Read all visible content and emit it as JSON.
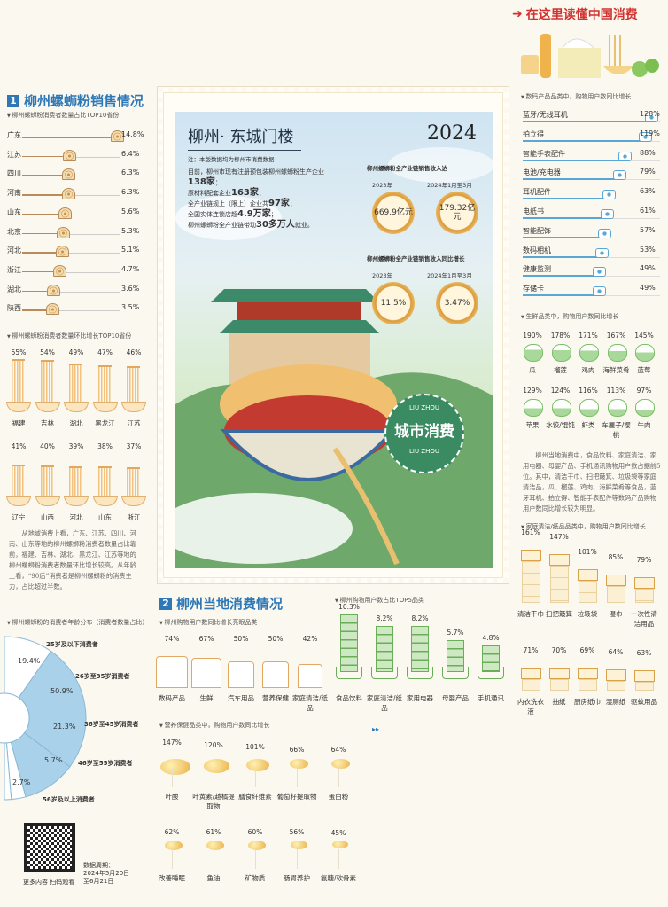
{
  "header": {
    "slogan": "在这里读懂中国消费",
    "slogan_color": "#d2312f"
  },
  "section1": {
    "num": "1",
    "title": "柳州螺蛳粉销售情况",
    "provinces_title": "柳州螺蛳粉消费者数量占比TOP10省份",
    "provinces": [
      {
        "name": "广东",
        "value": 14.8,
        "label": "14.8%"
      },
      {
        "name": "江苏",
        "value": 6.4,
        "label": "6.4%"
      },
      {
        "name": "四川",
        "value": 6.3,
        "label": "6.3%"
      },
      {
        "name": "河南",
        "value": 6.3,
        "label": "6.3%"
      },
      {
        "name": "山东",
        "value": 5.6,
        "label": "5.6%"
      },
      {
        "name": "北京",
        "value": 5.3,
        "label": "5.3%"
      },
      {
        "name": "河北",
        "value": 5.1,
        "label": "5.1%"
      },
      {
        "name": "浙江",
        "value": 4.7,
        "label": "4.7%"
      },
      {
        "name": "湖北",
        "value": 3.6,
        "label": "3.6%"
      },
      {
        "name": "陕西",
        "value": 3.5,
        "label": "3.5%"
      }
    ],
    "growth_title": "柳州螺蛳粉消费者数量环比增长TOP10省份",
    "growth": [
      {
        "name": "福建",
        "value": 55,
        "label": "55%"
      },
      {
        "name": "吉林",
        "value": 54,
        "label": "54%"
      },
      {
        "name": "湖北",
        "value": 49,
        "label": "49%"
      },
      {
        "name": "黑龙江",
        "value": 47,
        "label": "47%"
      },
      {
        "name": "江苏",
        "value": 46,
        "label": "46%"
      },
      {
        "name": "辽宁",
        "value": 41,
        "label": "41%"
      },
      {
        "name": "山西",
        "value": 40,
        "label": "40%"
      },
      {
        "name": "河北",
        "value": 39,
        "label": "39%"
      },
      {
        "name": "山东",
        "value": 38,
        "label": "38%"
      },
      {
        "name": "浙江",
        "value": 37,
        "label": "37%"
      }
    ],
    "paragraph": "从地域消费上看，广东、江苏、四川、河南、山东等地的柳州螺蛳粉消费者数量占比靠前，福建、吉林、湖北、黑龙江、江苏等地的柳州螺蛳粉消费者数量环比增长较高。从年龄上看，“90后”消费者是柳州螺蛳粉的消费主力，占比超过半数。",
    "age_title": "柳州螺蛳粉的消费者年龄分布（消费者数量占比）",
    "ages": [
      {
        "name": "25岁及以下消费者",
        "value": 19.4,
        "label": "19.4%"
      },
      {
        "name": "26岁至35岁消费者",
        "value": 50.9,
        "label": "50.9%"
      },
      {
        "name": "36岁至45岁消费者",
        "value": 21.3,
        "label": "21.3%"
      },
      {
        "name": "46岁至55岁消费者",
        "value": 5.7,
        "label": "5.7%"
      },
      {
        "name": "56岁及以上消费者",
        "value": 2.7,
        "label": "2.7%"
      }
    ],
    "qr_caption": "更多内容 扫码观看",
    "period_label": "数据周期：",
    "period_value": "2024年5月20日至6月21日"
  },
  "stamp": {
    "title": "柳州· 东城门楼",
    "year": "2024",
    "note": "注：本版数据均为柳州市消费数据",
    "facts": [
      {
        "pre": "目前，柳州市现有注册预包装柳州螺蛳粉生产企业",
        "num": "138家",
        "post": "；"
      },
      {
        "pre": "原材料配套企业",
        "num": "163家",
        "post": "；"
      },
      {
        "pre": "全产业链规上（限上）企业共",
        "num": "97家",
        "post": "；"
      },
      {
        "pre": "全国实体连锁店超",
        "num": "4.9万家",
        "post": "；"
      },
      {
        "pre": "柳州螺蛳粉全产业链带动",
        "num": "30多万人",
        "post": "就业。"
      }
    ],
    "revenue_title": "柳州螺蛳粉全产业链销售收入达",
    "growth_title": "柳州螺蛳粉全产业链销售收入同比增长",
    "periods": [
      "2023年",
      "2024年1月至3月"
    ],
    "revenue": [
      "669.9亿元",
      "179.32亿元"
    ],
    "growth": [
      "11.5%",
      "3.47%"
    ],
    "badge_top": "LIU ZHOU",
    "badge_text": "城市消费",
    "badge_bottom": "LIU ZHOU"
  },
  "section2": {
    "num": "2",
    "title": "柳州当地消费情况",
    "hot_title": "柳州购物用户数同比增长亮眼品类",
    "hot": [
      {
        "name": "数码产品",
        "value": 74,
        "label": "74%"
      },
      {
        "name": "生鲜",
        "value": 67,
        "label": "67%"
      },
      {
        "name": "汽车用品",
        "value": 50,
        "label": "50%"
      },
      {
        "name": "营养保健",
        "value": 50,
        "label": "50%"
      },
      {
        "name": "家庭清洁/纸品",
        "value": 42,
        "label": "42%"
      }
    ],
    "top5_title": "柳州购物用户数占比TOP5品类",
    "top5": [
      {
        "name": "食品饮料",
        "value": 10.3,
        "label": "10.3%"
      },
      {
        "name": "家庭清洁/纸品",
        "value": 8.2,
        "label": "8.2%"
      },
      {
        "name": "家用电器",
        "value": 8.2,
        "label": "8.2%"
      },
      {
        "name": "母婴产品",
        "value": 5.7,
        "label": "5.7%"
      },
      {
        "name": "手机通讯",
        "value": 4.8,
        "label": "4.8%"
      }
    ],
    "nutrition_title": "营养保健品类中，购物用户数同比增长",
    "nutrition": [
      {
        "name": "叶酸",
        "value": 147,
        "label": "147%"
      },
      {
        "name": "叶黄素/越橘提取物",
        "value": 120,
        "label": "120%"
      },
      {
        "name": "膳食纤维素",
        "value": 101,
        "label": "101%"
      },
      {
        "name": "葡萄籽提取物",
        "value": 66,
        "label": "66%"
      },
      {
        "name": "蛋白粉",
        "value": 64,
        "label": "64%"
      },
      {
        "name": "改善睡眠",
        "value": 62,
        "label": "62%"
      },
      {
        "name": "鱼油",
        "value": 61,
        "label": "61%"
      },
      {
        "name": "矿物质",
        "value": 60,
        "label": "60%"
      },
      {
        "name": "肠胃养护",
        "value": 56,
        "label": "56%"
      },
      {
        "name": "氨糖/软骨素",
        "value": 45,
        "label": "45%"
      }
    ],
    "arrows": "▸▸"
  },
  "right": {
    "digital_title": "数码产品品类中，购物用户数同比增长",
    "digital": [
      {
        "name": "蓝牙/无线耳机",
        "value": 128,
        "label": "128%"
      },
      {
        "name": "拍立得",
        "value": 119,
        "label": "119%"
      },
      {
        "name": "智能手表配件",
        "value": 88,
        "label": "88%"
      },
      {
        "name": "电池/充电器",
        "value": 79,
        "label": "79%"
      },
      {
        "name": "耳机配件",
        "value": 63,
        "label": "63%"
      },
      {
        "name": "电纸书",
        "value": 61,
        "label": "61%"
      },
      {
        "name": "智能配饰",
        "value": 57,
        "label": "57%"
      },
      {
        "name": "数码相机",
        "value": 53,
        "label": "53%"
      },
      {
        "name": "健康监测",
        "value": 49,
        "label": "49%"
      },
      {
        "name": "存储卡",
        "value": 49,
        "label": "49%"
      }
    ],
    "fresh_title": "生鲜品类中，购物用户数同比增长",
    "fresh": [
      {
        "name": "瓜",
        "value": 190,
        "label": "190%"
      },
      {
        "name": "榴莲",
        "value": 178,
        "label": "178%"
      },
      {
        "name": "鸡肉",
        "value": 171,
        "label": "171%"
      },
      {
        "name": "海鲜菜肴",
        "value": 167,
        "label": "167%"
      },
      {
        "name": "蓝莓",
        "value": 145,
        "label": "145%"
      },
      {
        "name": "苹果",
        "value": 129,
        "label": "129%"
      },
      {
        "name": "水饺/馄饨",
        "value": 124,
        "label": "124%"
      },
      {
        "name": "虾类",
        "value": 116,
        "label": "116%"
      },
      {
        "name": "车厘子/樱桃",
        "value": 113,
        "label": "113%"
      },
      {
        "name": "牛肉",
        "value": 97,
        "label": "97%"
      }
    ],
    "paragraph": "柳州当地消费中，食品饮料、家庭清洁、家用电器、母婴产品、手机通讯购物用户数占据前5位。其中，清洁干巾、扫把簸箕、垃圾袋等家庭清洁品，瓜、榴莲、鸡肉、海鲜菜肴等食品，蓝牙耳机、拍立得、智能手表配件等数码产品购物用户数同比增长较为明显。",
    "clean_title": "家庭清洁/纸品品类中，购物用户数同比增长",
    "clean": [
      {
        "name": "清洁干巾",
        "value": 161,
        "label": "161%"
      },
      {
        "name": "扫把簸箕",
        "value": 147,
        "label": "147%"
      },
      {
        "name": "垃圾袋",
        "value": 101,
        "label": "101%"
      },
      {
        "name": "湿巾",
        "value": 85,
        "label": "85%"
      },
      {
        "name": "一次性清洁用品",
        "value": 79,
        "label": "79%"
      },
      {
        "name": "内衣洗衣液",
        "value": 71,
        "label": "71%"
      },
      {
        "name": "抽纸",
        "value": 70,
        "label": "70%"
      },
      {
        "name": "厨房纸巾",
        "value": 69,
        "label": "69%"
      },
      {
        "name": "湿厕纸",
        "value": 64,
        "label": "64%"
      },
      {
        "name": "驱蚊用品",
        "value": 63,
        "label": "63%"
      }
    ]
  },
  "colors": {
    "blue": "#2f78b7",
    "snail_line": "#b98a5a",
    "noodle": "#f2c27e",
    "green": "#7cbf6a",
    "camera": "#5aa7d6",
    "gold": "#e9b24a"
  }
}
